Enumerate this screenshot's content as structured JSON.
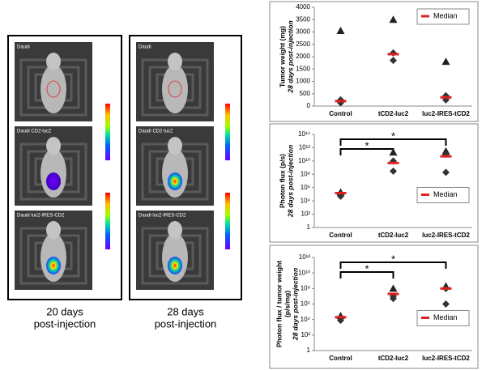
{
  "panels": [
    {
      "caption": [
        "20 days",
        "post-injection"
      ],
      "images": [
        "Daudi",
        "Daudi CD2-luc2",
        "Daudi luc2-IRES-CD2"
      ]
    },
    {
      "caption": [
        "28 days",
        "post-injection"
      ],
      "images": [
        "Daudi",
        "Daudi CD2-luc2",
        "Daudi luc2-IRES-CD2"
      ]
    }
  ],
  "chart_data": [
    {
      "type": "dot",
      "y_label": [
        "Tumor weight (mg)",
        "28 days post-injection"
      ],
      "categories": [
        "Control",
        "tCD2-luc2",
        "luc2-IRES-tCD2"
      ],
      "ylim": [
        0,
        4000
      ],
      "yticks": [
        0,
        500,
        1000,
        1500,
        2000,
        2500,
        3000,
        3500,
        4000
      ],
      "log": false,
      "legend": "upper right",
      "series": [
        {
          "marker": "triangle",
          "color": "#222222",
          "values": [
            3050,
            3500,
            1800
          ]
        },
        {
          "marker": "diamond",
          "color": "#333333",
          "values": [
            130,
            1850,
            250
          ]
        },
        {
          "marker": "diamond",
          "color": "#333333",
          "values": [
            250,
            2150,
            420
          ]
        },
        {
          "name": "Median",
          "marker": "dash",
          "color": "#e02020",
          "values": [
            200,
            2100,
            350
          ]
        }
      ]
    },
    {
      "type": "dot",
      "y_label": [
        "Photon flux (p/s)",
        "28 days post-injection"
      ],
      "categories": [
        "Control",
        "tCD2-luc2",
        "luc2-IRES-tCD2"
      ],
      "ylim": [
        1,
        100000000000000
      ],
      "log": true,
      "yticks": [
        1,
        {
          "value": 100,
          "label": "10²"
        },
        {
          "value": 10000,
          "label": "10⁴"
        },
        {
          "value": 1000000,
          "label": "10⁶"
        },
        {
          "value": 100000000,
          "label": "10⁸"
        },
        {
          "value": 10000000000,
          "label": "10¹⁰"
        },
        {
          "value": 1000000000000,
          "label": "10¹²"
        },
        {
          "value": 100000000000000,
          "label": "10¹⁴"
        }
      ],
      "legend": "center right",
      "brackets": [
        {
          "from": 0,
          "to": 2,
          "label": "*"
        },
        {
          "from": 0,
          "to": 1,
          "label": "*"
        }
      ],
      "series": [
        {
          "marker": "triangle",
          "color": "#222222",
          "values": [
            200000,
            200000000000,
            300000000000
          ]
        },
        {
          "marker": "diamond",
          "color": "#333333",
          "values": [
            100000,
            10000000000,
            100000000000
          ]
        },
        {
          "marker": "diamond",
          "color": "#333333",
          "values": [
            50000,
            300000000,
            200000000
          ]
        },
        {
          "name": "Median",
          "marker": "dash",
          "color": "#e02020",
          "values": [
            150000,
            5000000000,
            50000000000
          ]
        }
      ]
    },
    {
      "type": "dot",
      "y_label": [
        "Photon flux / tumor weight",
        "(p/s/mg)",
        "28 days post-injection"
      ],
      "categories": [
        "Control",
        "tCD2-luc2",
        "luc2-IRES-tCD2"
      ],
      "ylim": [
        1,
        1000000000000
      ],
      "log": true,
      "yticks": [
        1,
        {
          "value": 100,
          "label": "10²"
        },
        {
          "value": 10000,
          "label": "10⁴"
        },
        {
          "value": 1000000,
          "label": "10⁶"
        },
        {
          "value": 100000000,
          "label": "10⁸"
        },
        {
          "value": 10000000000,
          "label": "10¹⁰"
        },
        {
          "value": 1000000000000,
          "label": "10¹²"
        }
      ],
      "legend": "center right",
      "brackets": [
        {
          "from": 0,
          "to": 2,
          "label": "*"
        },
        {
          "from": 0,
          "to": 1,
          "label": "*"
        }
      ],
      "series": [
        {
          "marker": "triangle",
          "color": "#222222",
          "values": [
            30000,
            100000000,
            200000000
          ]
        },
        {
          "marker": "diamond",
          "color": "#333333",
          "values": [
            8000,
            10000000,
            100000000
          ]
        },
        {
          "marker": "diamond",
          "color": "#333333",
          "values": [
            20000,
            5000000,
            1000000
          ]
        },
        {
          "name": "Median",
          "marker": "dash",
          "color": "#e02020",
          "values": [
            20000,
            20000000,
            100000000
          ]
        }
      ]
    }
  ]
}
